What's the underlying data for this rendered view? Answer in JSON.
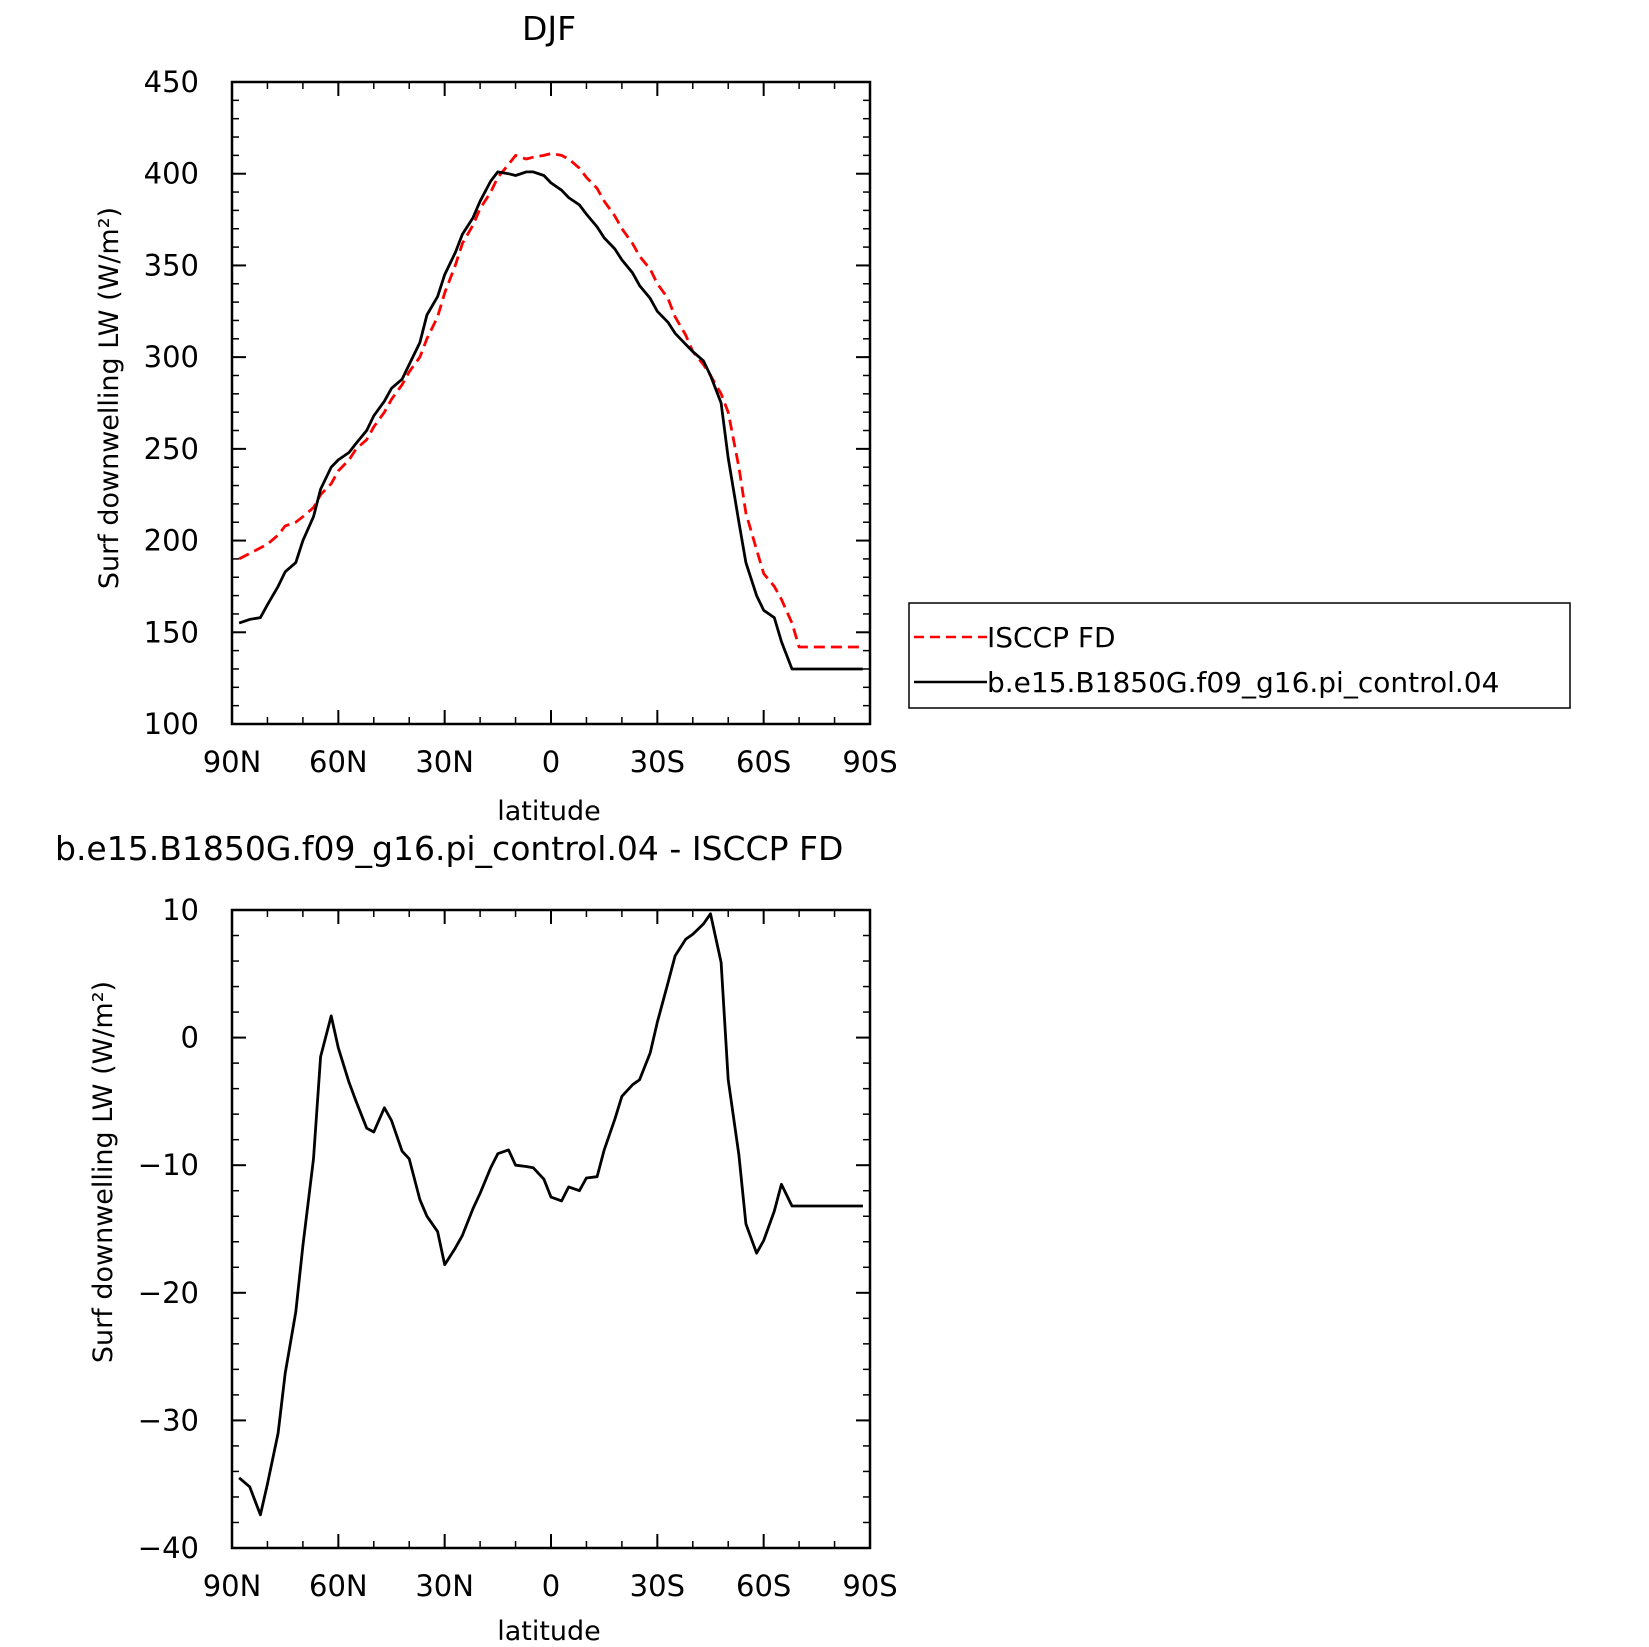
{
  "chart_data": [
    {
      "type": "line",
      "title": "DJF",
      "xlabel": "latitude",
      "ylabel": "Surf downwelling LW (W/m²)",
      "xlim": [
        90,
        -90
      ],
      "ylim": [
        100,
        450
      ],
      "xticks": [
        90,
        60,
        30,
        0,
        -30,
        -60,
        -90
      ],
      "xtick_labels": [
        "90N",
        "60N",
        "30N",
        "0",
        "30S",
        "60S",
        "90S"
      ],
      "yticks": [
        100,
        150,
        200,
        250,
        300,
        350,
        400,
        450
      ],
      "ytick_labels": [
        "100",
        "150",
        "200",
        "250",
        "300",
        "350",
        "400",
        "450"
      ],
      "x": [
        88,
        85,
        82,
        80,
        77,
        75,
        72,
        70,
        67,
        65,
        62,
        60,
        57,
        55,
        52,
        50,
        47,
        45,
        42,
        40,
        37,
        35,
        32,
        30,
        27,
        25,
        22,
        20,
        17,
        15,
        12,
        10,
        7,
        5,
        2,
        0,
        -3,
        -5,
        -8,
        -10,
        -13,
        -15,
        -18,
        -20,
        -23,
        -25,
        -28,
        -30,
        -33,
        -35,
        -38,
        -40,
        -43,
        -45,
        -48,
        -50,
        -53,
        -55,
        -58,
        -60,
        -63,
        -65,
        -68,
        -70,
        -73,
        -75,
        -78,
        -80,
        -83,
        -85,
        -88
      ],
      "legend_position": "right",
      "series": [
        {
          "name": "ISCCP FD",
          "color": "#ff0000",
          "dash": "dashed",
          "values": [
            190,
            193,
            196,
            198,
            203,
            208,
            210,
            213,
            218,
            225,
            231,
            238,
            244,
            250,
            255,
            262,
            270,
            277,
            285,
            292,
            300,
            310,
            322,
            335,
            350,
            362,
            372,
            381,
            390,
            398,
            405,
            410,
            408,
            409,
            410,
            411,
            410,
            408,
            403,
            398,
            392,
            385,
            377,
            370,
            362,
            355,
            348,
            340,
            332,
            322,
            312,
            303,
            296,
            290,
            280,
            270,
            240,
            215,
            195,
            182,
            175,
            168,
            155,
            142,
            142,
            142,
            142,
            142,
            142,
            142,
            142
          ]
        },
        {
          "name": "b.e15.B1850G.f09_g16.pi_control.04",
          "color": "#000000",
          "dash": "solid",
          "values": [
            155,
            157,
            158,
            165,
            175,
            183,
            188,
            200,
            213,
            228,
            240,
            244,
            248,
            253,
            260,
            268,
            276,
            283,
            288,
            296,
            308,
            323,
            333,
            345,
            357,
            367,
            376,
            385,
            396,
            401,
            400,
            399,
            401,
            401,
            399,
            395,
            391,
            387,
            383,
            378,
            371,
            365,
            359,
            353,
            346,
            339,
            332,
            325,
            319,
            313,
            307,
            303,
            298,
            290,
            275,
            245,
            210,
            188,
            170,
            162,
            158,
            145,
            130,
            130,
            130,
            130,
            130,
            130,
            130,
            130,
            130
          ]
        }
      ]
    },
    {
      "type": "line",
      "title": "b.e15.B1850G.f09_g16.pi_control.04 - ISCCP FD",
      "xlabel": "latitude",
      "ylabel": "Surf downwelling LW (W/m²)",
      "xlim": [
        90,
        -90
      ],
      "ylim": [
        -40,
        10
      ],
      "xticks": [
        90,
        60,
        30,
        0,
        -30,
        -60,
        -90
      ],
      "xtick_labels": [
        "90N",
        "60N",
        "30N",
        "0",
        "30S",
        "60S",
        "90S"
      ],
      "yticks": [
        -40,
        -30,
        -20,
        -10,
        0,
        10
      ],
      "ytick_labels": [
        "−40",
        "−30",
        "−20",
        "−10",
        "0",
        "10"
      ],
      "series": [
        {
          "color": "#000000",
          "dash": "solid",
          "x": [
            88,
            85,
            82,
            80,
            77,
            75,
            72,
            70,
            67,
            65,
            62,
            60,
            57,
            55,
            52,
            50,
            47,
            45,
            42,
            40,
            37,
            35,
            32,
            30,
            27,
            25,
            22,
            20,
            17,
            15,
            12,
            10,
            7,
            5,
            2,
            0,
            -3,
            -5,
            -8,
            -10,
            -13,
            -15,
            -18,
            -20,
            -23,
            -25,
            -28,
            -30,
            -33,
            -35,
            -38,
            -40,
            -43,
            -45,
            -48,
            -50,
            -53,
            -55,
            -58,
            -60,
            -63,
            -65,
            -68,
            -70,
            -73,
            -75,
            -78,
            -80,
            -83,
            -85,
            -88
          ],
          "values": [
            -34.5,
            -35.2,
            -37.4,
            -35,
            -31,
            -26.3,
            -21.5,
            -16.3,
            -9.5,
            -1.5,
            1.7,
            -0.8,
            -3.5,
            -5,
            -7.1,
            -7.4,
            -5.5,
            -6.5,
            -8.9,
            -9.5,
            -12.7,
            -14,
            -15.2,
            -17.8,
            -16.5,
            -15.5,
            -13.4,
            -12.2,
            -10.2,
            -9.1,
            -8.8,
            -10,
            -10.1,
            -10.2,
            -11.1,
            -12.5,
            -12.8,
            -11.7,
            -12,
            -11,
            -10.9,
            -8.8,
            -6.4,
            -4.6,
            -3.7,
            -3.3,
            -1.2,
            1.2,
            4.3,
            6.4,
            7.7,
            8.1,
            8.9,
            9.7,
            5.9,
            -3.3,
            -9.2,
            -14.6,
            -16.9,
            -15.9,
            -13.6,
            -11.5,
            -13.2,
            -13.2,
            -13.2,
            -13.2,
            -13.2,
            -13.2,
            -13.2,
            -13.2,
            -13.2
          ]
        }
      ]
    }
  ]
}
